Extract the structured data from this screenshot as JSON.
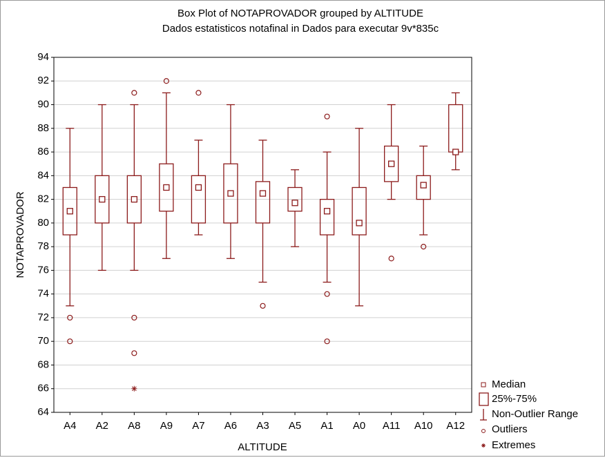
{
  "chart_data": {
    "type": "box",
    "title": "Box Plot of NOTAPROVADOR grouped by  ALTITUDE",
    "subtitle": "Dados estatisticos notafinal in Dados para executar 9v*835c",
    "x_label": "ALTITUDE",
    "y_label": "NOTAPROVADOR",
    "color": "#8b1a1a",
    "grid": true,
    "ylim": [
      64,
      94
    ],
    "yticks": [
      64,
      66,
      68,
      70,
      72,
      74,
      76,
      78,
      80,
      82,
      84,
      86,
      88,
      90,
      92,
      94
    ],
    "legend": [
      "Median",
      "25%-75%",
      "Non-Outlier Range",
      "Outliers",
      "Extremes"
    ],
    "categories": [
      "A4",
      "A2",
      "A8",
      "A9",
      "A7",
      "A6",
      "A3",
      "A5",
      "A1",
      "A0",
      "A11",
      "A10",
      "A12"
    ],
    "boxes": [
      {
        "whisker_low": 73,
        "q1": 79,
        "median": 81,
        "q3": 83,
        "whisker_high": 88,
        "outliers": [
          72,
          70
        ]
      },
      {
        "whisker_low": 76,
        "q1": 80,
        "median": 82,
        "q3": 84,
        "whisker_high": 90
      },
      {
        "whisker_low": 76,
        "q1": 80,
        "median": 82,
        "q3": 84,
        "whisker_high": 90,
        "outliers": [
          91,
          72,
          69
        ],
        "extremes": [
          66
        ]
      },
      {
        "whisker_low": 77,
        "q1": 81,
        "median": 83,
        "q3": 85,
        "whisker_high": 91,
        "outliers": [
          92
        ]
      },
      {
        "whisker_low": 79,
        "q1": 80,
        "median": 83,
        "q3": 84,
        "whisker_high": 87,
        "outliers": [
          91
        ]
      },
      {
        "whisker_low": 77,
        "q1": 80,
        "median": 82.5,
        "q3": 85,
        "whisker_high": 90
      },
      {
        "whisker_low": 75,
        "q1": 80,
        "median": 82.5,
        "q3": 83.5,
        "whisker_high": 87,
        "outliers": [
          73
        ]
      },
      {
        "whisker_low": 78,
        "q1": 81,
        "median": 81.7,
        "q3": 83,
        "whisker_high": 84.5
      },
      {
        "whisker_low": 75,
        "q1": 79,
        "median": 81,
        "q3": 82,
        "whisker_high": 86,
        "outliers": [
          89,
          74,
          70
        ]
      },
      {
        "whisker_low": 73,
        "q1": 79,
        "median": 80,
        "q3": 83,
        "whisker_high": 88
      },
      {
        "whisker_low": 82,
        "q1": 83.5,
        "median": 85,
        "q3": 86.5,
        "whisker_high": 90,
        "outliers": [
          77
        ]
      },
      {
        "whisker_low": 79,
        "q1": 82,
        "median": 83.2,
        "q3": 84,
        "whisker_high": 86.5,
        "outliers": [
          78
        ]
      },
      {
        "whisker_low": 84.5,
        "q1": 86,
        "median": 86,
        "q3": 90,
        "whisker_high": 91
      }
    ]
  }
}
